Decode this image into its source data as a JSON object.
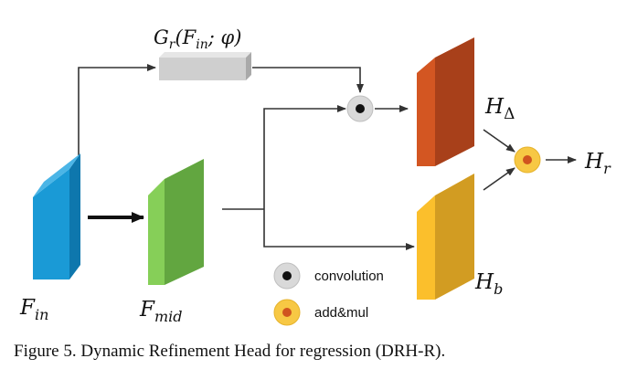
{
  "diagram": {
    "nodes": {
      "f_in": {
        "label": "F",
        "sub": "in",
        "color_front": "#1a9ad6",
        "color_side": "#0e77ad"
      },
      "f_mid": {
        "label": "F",
        "sub": "mid",
        "color_front": "#86cf58",
        "color_side": "#62a640"
      },
      "g_r": {
        "label_main": "G",
        "label_sub": "r",
        "label_args": "(F",
        "label_args_sub": "in",
        "label_tail": "; φ)",
        "color": "#cfcfcf"
      },
      "h_delta": {
        "label": "H",
        "sub": "Δ",
        "color_front": "#d35622",
        "color_side": "#a8401a"
      },
      "h_b": {
        "label": "H",
        "sub": "b",
        "color_front": "#fbbf2c",
        "color_side": "#d29c22"
      },
      "h_r": {
        "label": "H",
        "sub": "r"
      }
    },
    "operators": {
      "convolution_color": "#d9d9d9",
      "add_mul_color": "#f7c844",
      "add_mul_dot": "#d0541f"
    },
    "legend": {
      "convolution": "convolution",
      "add_mul": "add&mul"
    }
  },
  "caption": "Figure 5. Dynamic Refinement Head for regression (DRH-R)."
}
